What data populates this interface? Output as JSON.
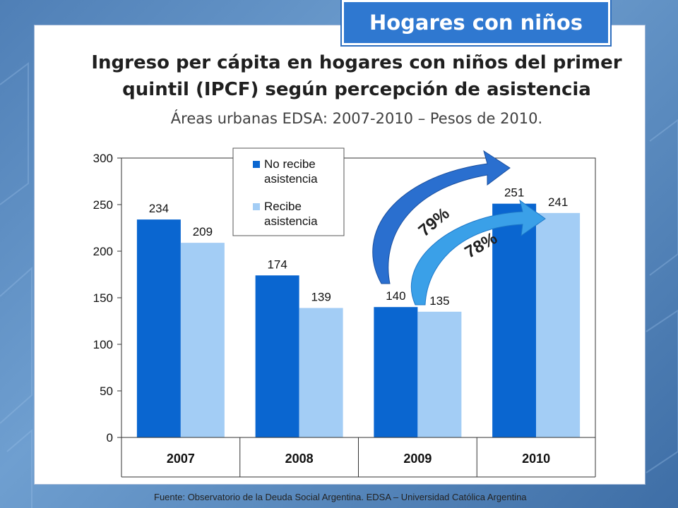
{
  "tag": "Hogares con niños",
  "title_line1": "Ingreso per cápita en hogares con niños del primer",
  "title_line2": "quintil (IPCF) según percepción de asistencia",
  "subtitle": "Áreas urbanas EDSA: 2007-2010 – Pesos de 2010.",
  "source": "Fuente: Observatorio de la Deuda Social Argentina. EDSA – Universidad Católica Argentina",
  "arrows": [
    {
      "label": "79%",
      "color": "#2a6fcf"
    },
    {
      "label": "78%",
      "color": "#3aa0e8"
    }
  ],
  "chart_data": {
    "type": "bar",
    "categories": [
      "2007",
      "2008",
      "2009",
      "2010"
    ],
    "series": [
      {
        "name": "No recibe asistencia",
        "values": [
          234,
          174,
          140,
          251
        ],
        "color": "#0a66d0"
      },
      {
        "name": "Recibe asistencia",
        "values": [
          209,
          139,
          135,
          241
        ],
        "color": "#a3cdf5"
      }
    ],
    "ylim": [
      0,
      300
    ],
    "yticks": [
      0,
      50,
      100,
      150,
      200,
      250,
      300
    ],
    "grid": false,
    "legend_position": "top-center"
  }
}
